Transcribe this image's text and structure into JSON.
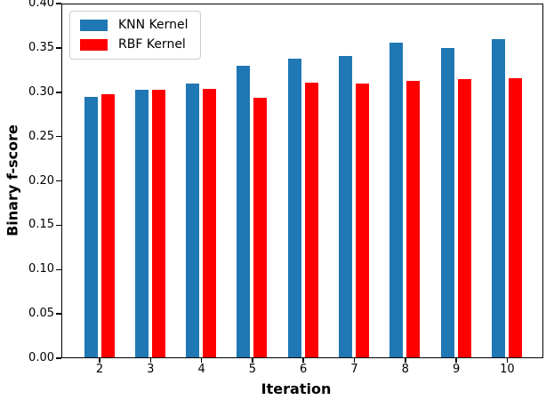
{
  "chart_data": {
    "type": "bar",
    "title": "",
    "xlabel": "Iteration",
    "ylabel": "Binary f-score",
    "categories": [
      "2",
      "3",
      "4",
      "5",
      "6",
      "7",
      "8",
      "9",
      "10"
    ],
    "series": [
      {
        "name": "KNN Kernel",
        "color": "#1f77b4",
        "values": [
          0.296,
          0.304,
          0.311,
          0.331,
          0.339,
          0.342,
          0.358,
          0.352,
          0.362
        ]
      },
      {
        "name": "RBF Kernel",
        "color": "#ff0000",
        "values": [
          0.299,
          0.304,
          0.305,
          0.295,
          0.312,
          0.311,
          0.314,
          0.316,
          0.317
        ]
      }
    ],
    "ylim": [
      0,
      0.4
    ],
    "yticks": [
      "0.00",
      "0.05",
      "0.10",
      "0.15",
      "0.20",
      "0.25",
      "0.30",
      "0.35",
      "0.40"
    ],
    "legend_position": "upper-left",
    "grid": false,
    "spine_color": "#000000",
    "background_color": "#ffffff"
  }
}
